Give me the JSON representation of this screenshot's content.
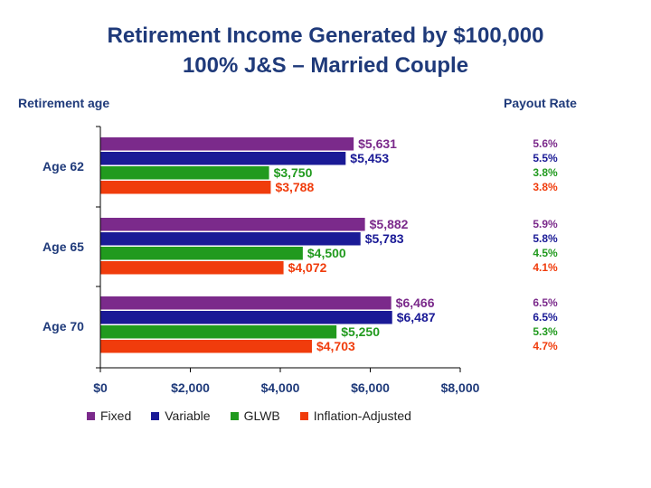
{
  "header": {
    "title_line1": "Retirement Income Generated by $100,000",
    "title_line2": "100% J&S – Married Couple",
    "left_label": "Retirement age",
    "right_label": "Payout Rate"
  },
  "colors": {
    "Fixed": "#7b2a8b",
    "Variable": "#1a1a96",
    "GLWB": "#219a1e",
    "Inflation-Adjusted": "#f03c0c",
    "axis": "#000000"
  },
  "chart_data": {
    "type": "bar",
    "orientation": "horizontal",
    "title": "Retirement Income Generated by $100,000 100% J&S – Married Couple",
    "ylabel": "Retirement age",
    "xlabel": "",
    "categories": [
      "Age 62",
      "Age 65",
      "Age 70"
    ],
    "xlim": [
      0,
      8000
    ],
    "x_ticks": [
      "$0",
      "$2,000",
      "$4,000",
      "$6,000",
      "$8,000"
    ],
    "x_tick_values": [
      0,
      2000,
      4000,
      6000,
      8000
    ],
    "legend_position": "bottom",
    "series": [
      {
        "name": "Fixed",
        "values": [
          5631,
          5882,
          6466
        ],
        "labels": [
          "$5,631",
          "$5,882",
          "$6,466"
        ],
        "payout": [
          "5.6%",
          "5.9%",
          "6.5%"
        ]
      },
      {
        "name": "Variable",
        "values": [
          5453,
          5783,
          6487
        ],
        "labels": [
          "$5,453",
          "$5,783",
          "$6,487"
        ],
        "payout": [
          "5.5%",
          "5.8%",
          "6.5%"
        ]
      },
      {
        "name": "GLWB",
        "values": [
          3750,
          4500,
          5250
        ],
        "labels": [
          "$3,750",
          "$4,500",
          "$5,250"
        ],
        "payout": [
          "3.8%",
          "4.5%",
          "5.3%"
        ]
      },
      {
        "name": "Inflation-Adjusted",
        "values": [
          3788,
          4072,
          4703
        ],
        "labels": [
          "$3,788",
          "$4,072",
          "$4,703"
        ],
        "payout": [
          "3.8%",
          "4.1%",
          "4.7%"
        ]
      }
    ]
  }
}
